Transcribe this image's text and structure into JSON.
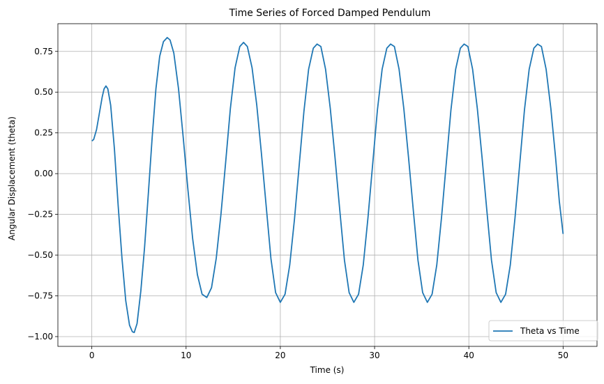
{
  "chart_data": {
    "type": "line",
    "title": "Time Series of Forced Damped Pendulum",
    "xlabel": "Time (s)",
    "ylabel": "Angular Displacement (theta)",
    "xlim": [
      -3.6,
      53.6
    ],
    "ylim": [
      -1.06,
      0.92
    ],
    "x_ticks": [
      0,
      10,
      20,
      30,
      40,
      50
    ],
    "x_tick_labels": [
      "0",
      "10",
      "20",
      "30",
      "40",
      "50"
    ],
    "y_ticks": [
      -1.0,
      -0.75,
      -0.5,
      -0.25,
      0.0,
      0.25,
      0.5,
      0.75
    ],
    "y_tick_labels": [
      "−1.00",
      "−0.75",
      "−0.50",
      "−0.25",
      "0.00",
      "0.25",
      "0.50",
      "0.75"
    ],
    "grid": true,
    "legend_position": "lower-right",
    "series": [
      {
        "name": "Theta vs Time",
        "color": "#1f77b4",
        "points": [
          [
            0.0,
            0.2
          ],
          [
            0.2,
            0.21
          ],
          [
            0.5,
            0.27
          ],
          [
            0.8,
            0.37
          ],
          [
            1.1,
            0.47
          ],
          [
            1.3,
            0.52
          ],
          [
            1.5,
            0.538
          ],
          [
            1.7,
            0.52
          ],
          [
            2.0,
            0.42
          ],
          [
            2.4,
            0.15
          ],
          [
            2.8,
            -0.2
          ],
          [
            3.2,
            -0.52
          ],
          [
            3.6,
            -0.78
          ],
          [
            4.0,
            -0.93
          ],
          [
            4.3,
            -0.97
          ],
          [
            4.5,
            -0.975
          ],
          [
            4.8,
            -0.92
          ],
          [
            5.2,
            -0.72
          ],
          [
            5.6,
            -0.45
          ],
          [
            6.0,
            -0.12
          ],
          [
            6.4,
            0.22
          ],
          [
            6.8,
            0.52
          ],
          [
            7.2,
            0.72
          ],
          [
            7.6,
            0.81
          ],
          [
            8.0,
            0.835
          ],
          [
            8.3,
            0.82
          ],
          [
            8.7,
            0.74
          ],
          [
            9.2,
            0.52
          ],
          [
            9.7,
            0.22
          ],
          [
            10.2,
            -0.1
          ],
          [
            10.7,
            -0.4
          ],
          [
            11.2,
            -0.62
          ],
          [
            11.7,
            -0.74
          ],
          [
            12.2,
            -0.76
          ],
          [
            12.7,
            -0.7
          ],
          [
            13.2,
            -0.52
          ],
          [
            13.7,
            -0.25
          ],
          [
            14.2,
            0.07
          ],
          [
            14.7,
            0.4
          ],
          [
            15.2,
            0.65
          ],
          [
            15.7,
            0.78
          ],
          [
            16.1,
            0.805
          ],
          [
            16.5,
            0.78
          ],
          [
            17.0,
            0.65
          ],
          [
            17.5,
            0.42
          ],
          [
            18.0,
            0.12
          ],
          [
            18.5,
            -0.2
          ],
          [
            19.0,
            -0.52
          ],
          [
            19.5,
            -0.73
          ],
          [
            20.0,
            -0.79
          ],
          [
            20.5,
            -0.74
          ],
          [
            21.0,
            -0.56
          ],
          [
            21.5,
            -0.28
          ],
          [
            22.0,
            0.05
          ],
          [
            22.5,
            0.38
          ],
          [
            23.0,
            0.64
          ],
          [
            23.5,
            0.77
          ],
          [
            23.9,
            0.795
          ],
          [
            24.3,
            0.78
          ],
          [
            24.8,
            0.64
          ],
          [
            25.3,
            0.4
          ],
          [
            25.8,
            0.1
          ],
          [
            26.3,
            -0.22
          ],
          [
            26.8,
            -0.53
          ],
          [
            27.3,
            -0.73
          ],
          [
            27.8,
            -0.79
          ],
          [
            28.3,
            -0.74
          ],
          [
            28.8,
            -0.56
          ],
          [
            29.3,
            -0.27
          ],
          [
            29.8,
            0.06
          ],
          [
            30.3,
            0.39
          ],
          [
            30.8,
            0.64
          ],
          [
            31.3,
            0.77
          ],
          [
            31.7,
            0.795
          ],
          [
            32.1,
            0.78
          ],
          [
            32.6,
            0.64
          ],
          [
            33.1,
            0.4
          ],
          [
            33.6,
            0.1
          ],
          [
            34.1,
            -0.22
          ],
          [
            34.6,
            -0.53
          ],
          [
            35.1,
            -0.73
          ],
          [
            35.6,
            -0.79
          ],
          [
            36.1,
            -0.74
          ],
          [
            36.6,
            -0.56
          ],
          [
            37.1,
            -0.27
          ],
          [
            37.6,
            0.06
          ],
          [
            38.1,
            0.39
          ],
          [
            38.6,
            0.64
          ],
          [
            39.1,
            0.77
          ],
          [
            39.5,
            0.795
          ],
          [
            39.9,
            0.78
          ],
          [
            40.4,
            0.64
          ],
          [
            40.9,
            0.4
          ],
          [
            41.4,
            0.1
          ],
          [
            41.9,
            -0.22
          ],
          [
            42.4,
            -0.53
          ],
          [
            42.9,
            -0.73
          ],
          [
            43.4,
            -0.79
          ],
          [
            43.9,
            -0.74
          ],
          [
            44.4,
            -0.56
          ],
          [
            44.9,
            -0.27
          ],
          [
            45.4,
            0.06
          ],
          [
            45.9,
            0.39
          ],
          [
            46.4,
            0.64
          ],
          [
            46.9,
            0.77
          ],
          [
            47.3,
            0.795
          ],
          [
            47.7,
            0.78
          ],
          [
            48.2,
            0.64
          ],
          [
            48.7,
            0.4
          ],
          [
            49.2,
            0.1
          ],
          [
            49.6,
            -0.17
          ],
          [
            50.0,
            -0.37
          ]
        ]
      }
    ]
  }
}
